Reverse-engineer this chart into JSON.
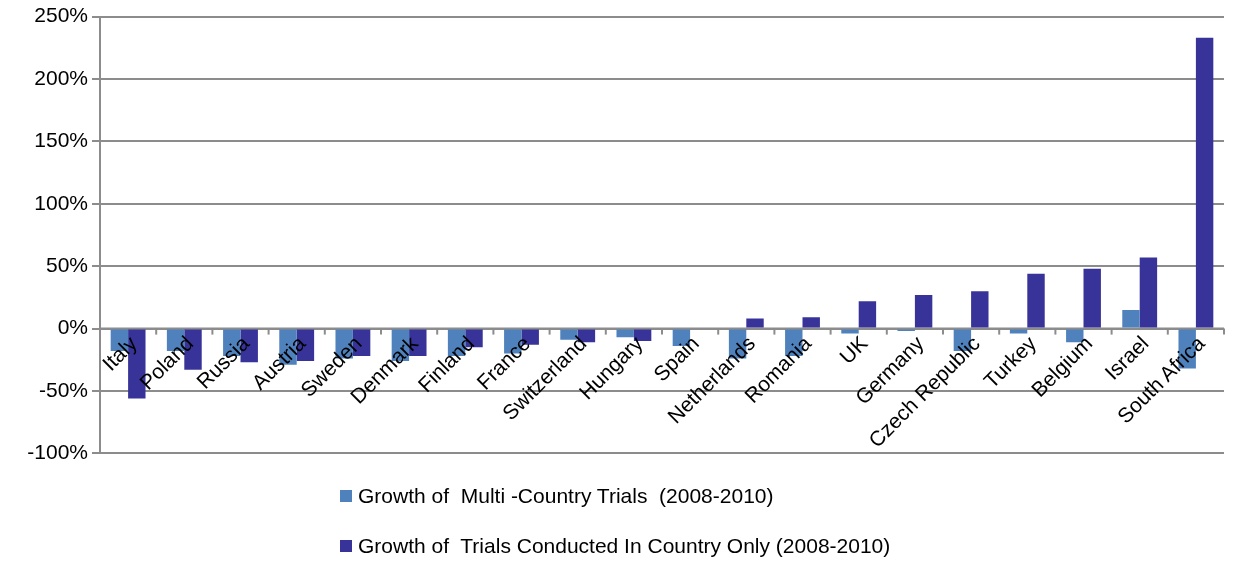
{
  "chart_data": {
    "type": "bar",
    "categories": [
      "Italy",
      "Poland",
      "Russia",
      "Austria",
      "Sweden",
      "Denmark",
      "Finland",
      "France",
      "Switzerland",
      "Hungary",
      "Spain",
      "Netherlands",
      "Romania",
      "UK",
      "Germany",
      "Czech Republic",
      "Turkey",
      "Belgium",
      "Israel",
      "South Africa"
    ],
    "series": [
      {
        "name": "Growth of  Multi -Country Trials  (2008-2010)",
        "color": "#4f81bd",
        "values": [
          -18,
          -18,
          -22,
          -29,
          -24,
          -26,
          -22,
          -20,
          -9,
          -7,
          -14,
          -24,
          -22,
          -4,
          -2,
          -18,
          -4,
          -11,
          15,
          -32
        ]
      },
      {
        "name": "Growth of  Trials Conducted In Country Only (2008-2010)",
        "color": "#373399",
        "values": [
          -56,
          -33,
          -27,
          -26,
          -22,
          -22,
          -15,
          -13,
          -11,
          -10,
          null,
          8,
          9,
          22,
          27,
          30,
          44,
          48,
          57,
          233
        ]
      }
    ],
    "ylim": [
      -100,
      250
    ],
    "yticks": [
      {
        "value": -100,
        "label": "-100%"
      },
      {
        "value": -50,
        "label": "-50%"
      },
      {
        "value": 0,
        "label": "0%"
      },
      {
        "value": 50,
        "label": "50%"
      },
      {
        "value": 100,
        "label": "100%"
      },
      {
        "value": 150,
        "label": "150%"
      },
      {
        "value": 200,
        "label": "200%"
      },
      {
        "value": 250,
        "label": "250%"
      }
    ],
    "grid": "y",
    "legend": "bottom"
  }
}
